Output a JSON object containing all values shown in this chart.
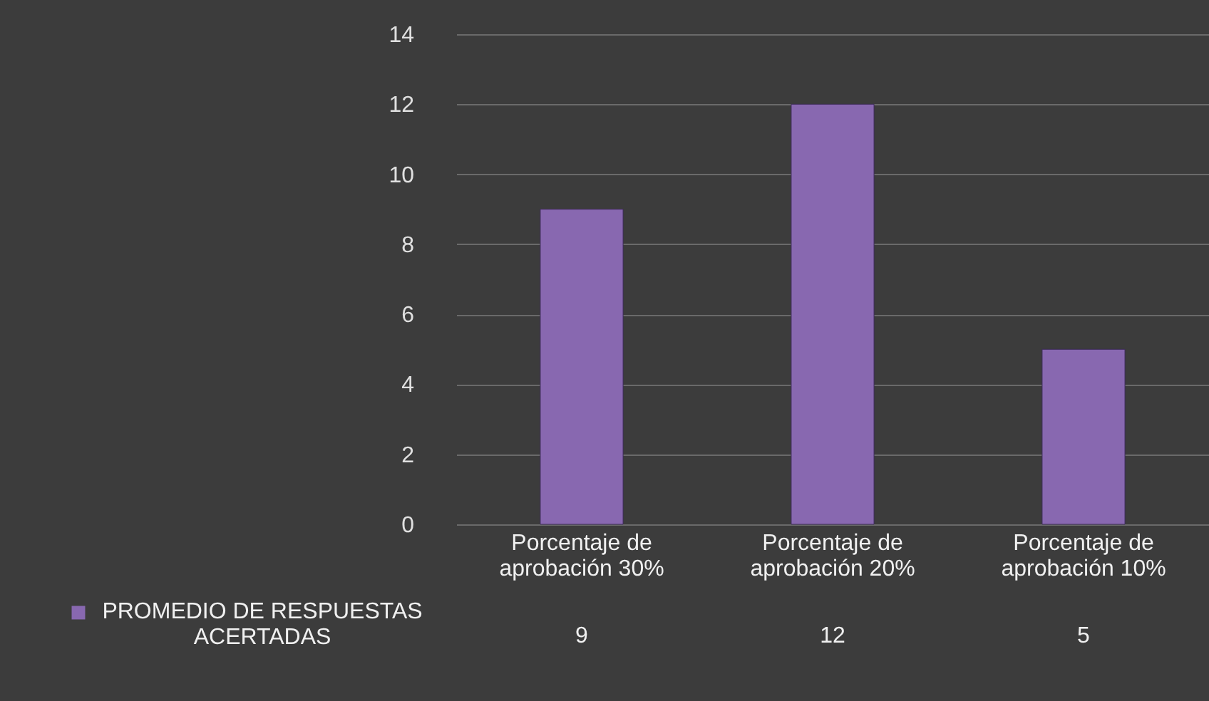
{
  "chart_data": {
    "type": "bar",
    "categories": [
      "Porcentaje de aprobación 30%",
      "Porcentaje de aprobación 20%",
      "Porcentaje de aprobación 10%"
    ],
    "series": [
      {
        "name": "PROMEDIO DE RESPUESTAS ACERTADAS",
        "color": "#8868b0",
        "values": [
          9,
          12,
          5
        ]
      }
    ],
    "ylim": [
      0,
      14
    ],
    "yticks": [
      0,
      2,
      4,
      6,
      8,
      10,
      12,
      14
    ],
    "grid": "y",
    "data_labels": true,
    "legend": "bottom left"
  }
}
